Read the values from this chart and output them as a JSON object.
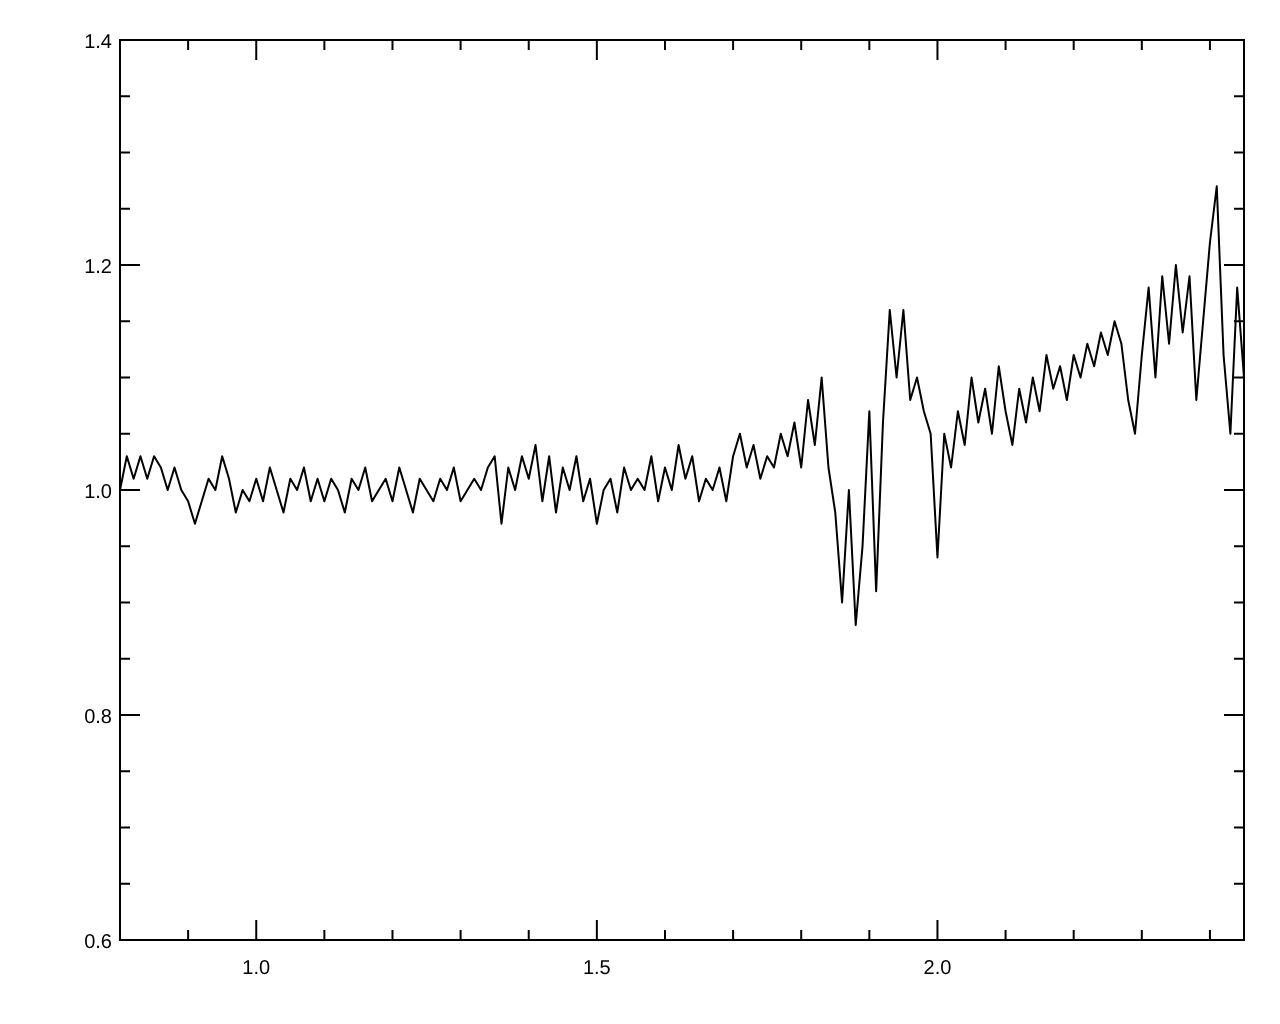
{
  "chart_data": {
    "type": "line",
    "xlim": [
      0.8,
      2.45
    ],
    "ylim": [
      0.6,
      1.4
    ],
    "xticks": [
      {
        "value": 0.9,
        "label": null
      },
      {
        "value": 1.0,
        "label": "1.0"
      },
      {
        "value": 1.1,
        "label": null
      },
      {
        "value": 1.2,
        "label": null
      },
      {
        "value": 1.3,
        "label": null
      },
      {
        "value": 1.4,
        "label": null
      },
      {
        "value": 1.5,
        "label": "1.5"
      },
      {
        "value": 1.6,
        "label": null
      },
      {
        "value": 1.7,
        "label": null
      },
      {
        "value": 1.8,
        "label": null
      },
      {
        "value": 1.9,
        "label": null
      },
      {
        "value": 2.0,
        "label": "2.0"
      },
      {
        "value": 2.1,
        "label": null
      },
      {
        "value": 2.2,
        "label": null
      },
      {
        "value": 2.3,
        "label": null
      },
      {
        "value": 2.4,
        "label": null
      }
    ],
    "yticks": [
      {
        "value": 0.6,
        "label": "0.6"
      },
      {
        "value": 0.65,
        "label": null
      },
      {
        "value": 0.7,
        "label": null
      },
      {
        "value": 0.75,
        "label": null
      },
      {
        "value": 0.8,
        "label": "0.8"
      },
      {
        "value": 0.85,
        "label": null
      },
      {
        "value": 0.9,
        "label": null
      },
      {
        "value": 0.95,
        "label": null
      },
      {
        "value": 1.0,
        "label": "1.0"
      },
      {
        "value": 1.05,
        "label": null
      },
      {
        "value": 1.1,
        "label": null
      },
      {
        "value": 1.15,
        "label": null
      },
      {
        "value": 1.2,
        "label": "1.2"
      },
      {
        "value": 1.25,
        "label": null
      },
      {
        "value": 1.3,
        "label": null
      },
      {
        "value": 1.35,
        "label": null
      },
      {
        "value": 1.4,
        "label": "1.4"
      }
    ],
    "grid": false,
    "marker": "none",
    "line_style": "solid",
    "x": [
      0.8,
      0.81,
      0.82,
      0.83,
      0.84,
      0.85,
      0.86,
      0.87,
      0.88,
      0.89,
      0.9,
      0.91,
      0.92,
      0.93,
      0.94,
      0.95,
      0.96,
      0.97,
      0.98,
      0.99,
      1.0,
      1.01,
      1.02,
      1.03,
      1.04,
      1.05,
      1.06,
      1.07,
      1.08,
      1.09,
      1.1,
      1.11,
      1.12,
      1.13,
      1.14,
      1.15,
      1.16,
      1.17,
      1.18,
      1.19,
      1.2,
      1.21,
      1.22,
      1.23,
      1.24,
      1.25,
      1.26,
      1.27,
      1.28,
      1.29,
      1.3,
      1.31,
      1.32,
      1.33,
      1.34,
      1.35,
      1.36,
      1.37,
      1.38,
      1.39,
      1.4,
      1.41,
      1.42,
      1.43,
      1.44,
      1.45,
      1.46,
      1.47,
      1.48,
      1.49,
      1.5,
      1.51,
      1.52,
      1.53,
      1.54,
      1.55,
      1.56,
      1.57,
      1.58,
      1.59,
      1.6,
      1.61,
      1.62,
      1.63,
      1.64,
      1.65,
      1.66,
      1.67,
      1.68,
      1.69,
      1.7,
      1.71,
      1.72,
      1.73,
      1.74,
      1.75,
      1.76,
      1.77,
      1.78,
      1.79,
      1.8,
      1.81,
      1.82,
      1.83,
      1.84,
      1.85,
      1.86,
      1.87,
      1.88,
      1.89,
      1.9,
      1.91,
      1.92,
      1.93,
      1.94,
      1.95,
      1.96,
      1.97,
      1.98,
      1.99,
      2.0,
      2.01,
      2.02,
      2.03,
      2.04,
      2.05,
      2.06,
      2.07,
      2.08,
      2.09,
      2.1,
      2.11,
      2.12,
      2.13,
      2.14,
      2.15,
      2.16,
      2.17,
      2.18,
      2.19,
      2.2,
      2.21,
      2.22,
      2.23,
      2.24,
      2.25,
      2.26,
      2.27,
      2.28,
      2.29,
      2.3,
      2.31,
      2.32,
      2.33,
      2.34,
      2.35,
      2.36,
      2.37,
      2.38,
      2.39,
      2.4,
      2.41,
      2.42,
      2.43,
      2.44,
      2.45
    ],
    "series": [
      {
        "color": "#000000",
        "values": [
          1.0,
          1.03,
          1.01,
          1.03,
          1.01,
          1.03,
          1.02,
          1.0,
          1.02,
          1.0,
          0.99,
          0.97,
          0.99,
          1.01,
          1.0,
          1.03,
          1.01,
          0.98,
          1.0,
          0.99,
          1.01,
          0.99,
          1.02,
          1.0,
          0.98,
          1.01,
          1.0,
          1.02,
          0.99,
          1.01,
          0.99,
          1.01,
          1.0,
          0.98,
          1.01,
          1.0,
          1.02,
          0.99,
          1.0,
          1.01,
          0.99,
          1.02,
          1.0,
          0.98,
          1.01,
          1.0,
          0.99,
          1.01,
          1.0,
          1.02,
          0.99,
          1.0,
          1.01,
          1.0,
          1.02,
          1.03,
          0.97,
          1.02,
          1.0,
          1.03,
          1.01,
          1.04,
          0.99,
          1.03,
          0.98,
          1.02,
          1.0,
          1.03,
          0.99,
          1.01,
          0.97,
          1.0,
          1.01,
          0.98,
          1.02,
          1.0,
          1.01,
          1.0,
          1.03,
          0.99,
          1.02,
          1.0,
          1.04,
          1.01,
          1.03,
          0.99,
          1.01,
          1.0,
          1.02,
          0.99,
          1.03,
          1.05,
          1.02,
          1.04,
          1.01,
          1.03,
          1.02,
          1.05,
          1.03,
          1.06,
          1.02,
          1.08,
          1.04,
          1.1,
          1.02,
          0.98,
          0.9,
          1.0,
          0.88,
          0.95,
          1.07,
          0.91,
          1.06,
          1.16,
          1.1,
          1.16,
          1.08,
          1.1,
          1.07,
          1.05,
          0.94,
          1.05,
          1.02,
          1.07,
          1.04,
          1.1,
          1.06,
          1.09,
          1.05,
          1.11,
          1.07,
          1.04,
          1.09,
          1.06,
          1.1,
          1.07,
          1.12,
          1.09,
          1.11,
          1.08,
          1.12,
          1.1,
          1.13,
          1.11,
          1.14,
          1.12,
          1.15,
          1.13,
          1.08,
          1.05,
          1.12,
          1.18,
          1.1,
          1.19,
          1.13,
          1.2,
          1.14,
          1.19,
          1.08,
          1.15,
          1.22,
          1.27,
          1.12,
          1.05,
          1.18,
          1.1
        ]
      }
    ]
  }
}
